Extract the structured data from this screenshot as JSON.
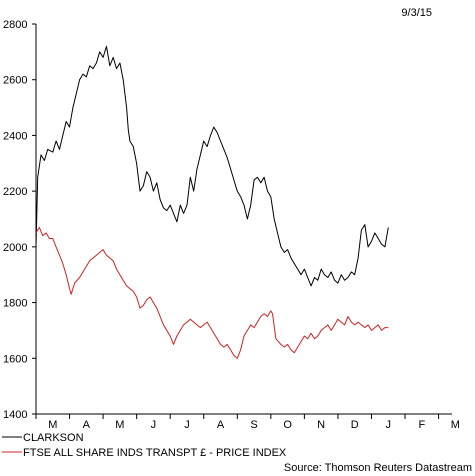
{
  "date_label": "9/3/15",
  "source_label": "Source: Thomson Reuters Datastream",
  "chart_data": {
    "type": "line",
    "title": "",
    "xlabel": "",
    "ylabel": "",
    "ylim": [
      1400,
      2800
    ],
    "yticks": [
      1400,
      1600,
      1800,
      2000,
      2200,
      2400,
      2600,
      2800
    ],
    "xlim": [
      0,
      12.4
    ],
    "month_ticks": [
      "M",
      "A",
      "M",
      "J",
      "J",
      "A",
      "S",
      "O",
      "N",
      "D",
      "J",
      "F",
      "M"
    ],
    "grid": false,
    "legend_position": "bottom-left",
    "series": [
      {
        "name": "CLARKSON",
        "color": "#000000",
        "points": [
          [
            0.0,
            2000
          ],
          [
            0.05,
            2250
          ],
          [
            0.15,
            2330
          ],
          [
            0.25,
            2310
          ],
          [
            0.35,
            2350
          ],
          [
            0.5,
            2340
          ],
          [
            0.6,
            2380
          ],
          [
            0.7,
            2350
          ],
          [
            0.8,
            2400
          ],
          [
            0.9,
            2450
          ],
          [
            1.0,
            2430
          ],
          [
            1.1,
            2500
          ],
          [
            1.2,
            2550
          ],
          [
            1.3,
            2600
          ],
          [
            1.4,
            2620
          ],
          [
            1.5,
            2610
          ],
          [
            1.6,
            2650
          ],
          [
            1.7,
            2640
          ],
          [
            1.8,
            2660
          ],
          [
            1.9,
            2700
          ],
          [
            2.0,
            2680
          ],
          [
            2.1,
            2720
          ],
          [
            2.2,
            2650
          ],
          [
            2.3,
            2680
          ],
          [
            2.4,
            2640
          ],
          [
            2.5,
            2660
          ],
          [
            2.6,
            2600
          ],
          [
            2.7,
            2500
          ],
          [
            2.75,
            2420
          ],
          [
            2.8,
            2380
          ],
          [
            2.9,
            2360
          ],
          [
            3.0,
            2300
          ],
          [
            3.1,
            2200
          ],
          [
            3.2,
            2220
          ],
          [
            3.3,
            2270
          ],
          [
            3.4,
            2250
          ],
          [
            3.5,
            2200
          ],
          [
            3.6,
            2230
          ],
          [
            3.7,
            2170
          ],
          [
            3.8,
            2140
          ],
          [
            3.9,
            2130
          ],
          [
            4.0,
            2150
          ],
          [
            4.1,
            2120
          ],
          [
            4.2,
            2090
          ],
          [
            4.3,
            2150
          ],
          [
            4.4,
            2120
          ],
          [
            4.5,
            2150
          ],
          [
            4.6,
            2250
          ],
          [
            4.7,
            2200
          ],
          [
            4.8,
            2280
          ],
          [
            4.9,
            2330
          ],
          [
            5.0,
            2380
          ],
          [
            5.1,
            2360
          ],
          [
            5.2,
            2400
          ],
          [
            5.3,
            2430
          ],
          [
            5.4,
            2410
          ],
          [
            5.5,
            2380
          ],
          [
            5.6,
            2350
          ],
          [
            5.7,
            2320
          ],
          [
            5.8,
            2280
          ],
          [
            5.9,
            2240
          ],
          [
            6.0,
            2200
          ],
          [
            6.1,
            2180
          ],
          [
            6.2,
            2150
          ],
          [
            6.3,
            2100
          ],
          [
            6.4,
            2150
          ],
          [
            6.5,
            2240
          ],
          [
            6.6,
            2250
          ],
          [
            6.7,
            2230
          ],
          [
            6.8,
            2250
          ],
          [
            6.9,
            2200
          ],
          [
            7.0,
            2180
          ],
          [
            7.1,
            2100
          ],
          [
            7.2,
            2050
          ],
          [
            7.3,
            2000
          ],
          [
            7.4,
            1980
          ],
          [
            7.5,
            1990
          ],
          [
            7.6,
            1960
          ],
          [
            7.7,
            1940
          ],
          [
            7.8,
            1920
          ],
          [
            7.9,
            1900
          ],
          [
            8.0,
            1920
          ],
          [
            8.1,
            1890
          ],
          [
            8.2,
            1860
          ],
          [
            8.3,
            1890
          ],
          [
            8.4,
            1880
          ],
          [
            8.5,
            1920
          ],
          [
            8.6,
            1900
          ],
          [
            8.7,
            1890
          ],
          [
            8.8,
            1910
          ],
          [
            8.9,
            1880
          ],
          [
            9.0,
            1870
          ],
          [
            9.1,
            1900
          ],
          [
            9.2,
            1880
          ],
          [
            9.3,
            1890
          ],
          [
            9.4,
            1910
          ],
          [
            9.5,
            1900
          ],
          [
            9.6,
            1960
          ],
          [
            9.7,
            2060
          ],
          [
            9.8,
            2080
          ],
          [
            9.9,
            2000
          ],
          [
            10.0,
            2020
          ],
          [
            10.1,
            2050
          ],
          [
            10.2,
            2030
          ],
          [
            10.3,
            2010
          ],
          [
            10.4,
            2000
          ],
          [
            10.5,
            2070
          ]
        ]
      },
      {
        "name": "FTSE ALL SHARE INDS TRANSPT £ - PRICE INDEX",
        "color": "#d42020",
        "points": [
          [
            0.0,
            2050
          ],
          [
            0.1,
            2070
          ],
          [
            0.2,
            2040
          ],
          [
            0.3,
            2050
          ],
          [
            0.4,
            2030
          ],
          [
            0.5,
            2030
          ],
          [
            0.6,
            2000
          ],
          [
            0.7,
            1970
          ],
          [
            0.8,
            1940
          ],
          [
            0.9,
            1900
          ],
          [
            1.0,
            1850
          ],
          [
            1.05,
            1830
          ],
          [
            1.15,
            1870
          ],
          [
            1.3,
            1890
          ],
          [
            1.4,
            1910
          ],
          [
            1.5,
            1930
          ],
          [
            1.6,
            1950
          ],
          [
            1.7,
            1960
          ],
          [
            1.8,
            1970
          ],
          [
            1.9,
            1980
          ],
          [
            2.0,
            1990
          ],
          [
            2.1,
            1970
          ],
          [
            2.2,
            1960
          ],
          [
            2.3,
            1950
          ],
          [
            2.4,
            1920
          ],
          [
            2.5,
            1900
          ],
          [
            2.6,
            1880
          ],
          [
            2.7,
            1860
          ],
          [
            2.8,
            1850
          ],
          [
            2.9,
            1840
          ],
          [
            3.0,
            1820
          ],
          [
            3.1,
            1780
          ],
          [
            3.2,
            1790
          ],
          [
            3.3,
            1810
          ],
          [
            3.4,
            1820
          ],
          [
            3.5,
            1800
          ],
          [
            3.6,
            1780
          ],
          [
            3.7,
            1750
          ],
          [
            3.8,
            1720
          ],
          [
            3.9,
            1700
          ],
          [
            4.0,
            1680
          ],
          [
            4.1,
            1650
          ],
          [
            4.2,
            1680
          ],
          [
            4.3,
            1700
          ],
          [
            4.4,
            1720
          ],
          [
            4.5,
            1730
          ],
          [
            4.6,
            1740
          ],
          [
            4.7,
            1730
          ],
          [
            4.8,
            1720
          ],
          [
            4.9,
            1710
          ],
          [
            5.0,
            1720
          ],
          [
            5.1,
            1730
          ],
          [
            5.2,
            1710
          ],
          [
            5.3,
            1690
          ],
          [
            5.4,
            1670
          ],
          [
            5.5,
            1650
          ],
          [
            5.6,
            1640
          ],
          [
            5.7,
            1650
          ],
          [
            5.8,
            1630
          ],
          [
            5.9,
            1610
          ],
          [
            6.0,
            1600
          ],
          [
            6.1,
            1630
          ],
          [
            6.2,
            1680
          ],
          [
            6.3,
            1700
          ],
          [
            6.4,
            1720
          ],
          [
            6.5,
            1710
          ],
          [
            6.6,
            1730
          ],
          [
            6.7,
            1750
          ],
          [
            6.8,
            1760
          ],
          [
            6.9,
            1750
          ],
          [
            7.0,
            1770
          ],
          [
            7.05,
            1760
          ],
          [
            7.15,
            1670
          ],
          [
            7.3,
            1650
          ],
          [
            7.4,
            1640
          ],
          [
            7.5,
            1650
          ],
          [
            7.6,
            1630
          ],
          [
            7.7,
            1620
          ],
          [
            7.8,
            1640
          ],
          [
            7.9,
            1660
          ],
          [
            8.0,
            1680
          ],
          [
            8.1,
            1670
          ],
          [
            8.2,
            1690
          ],
          [
            8.3,
            1670
          ],
          [
            8.4,
            1680
          ],
          [
            8.5,
            1700
          ],
          [
            8.6,
            1710
          ],
          [
            8.7,
            1720
          ],
          [
            8.8,
            1700
          ],
          [
            8.9,
            1720
          ],
          [
            9.0,
            1740
          ],
          [
            9.1,
            1730
          ],
          [
            9.2,
            1720
          ],
          [
            9.3,
            1750
          ],
          [
            9.4,
            1730
          ],
          [
            9.5,
            1720
          ],
          [
            9.6,
            1730
          ],
          [
            9.7,
            1720
          ],
          [
            9.8,
            1710
          ],
          [
            9.9,
            1720
          ],
          [
            10.0,
            1700
          ],
          [
            10.1,
            1710
          ],
          [
            10.2,
            1720
          ],
          [
            10.3,
            1700
          ],
          [
            10.4,
            1710
          ],
          [
            10.5,
            1710
          ]
        ]
      }
    ]
  }
}
